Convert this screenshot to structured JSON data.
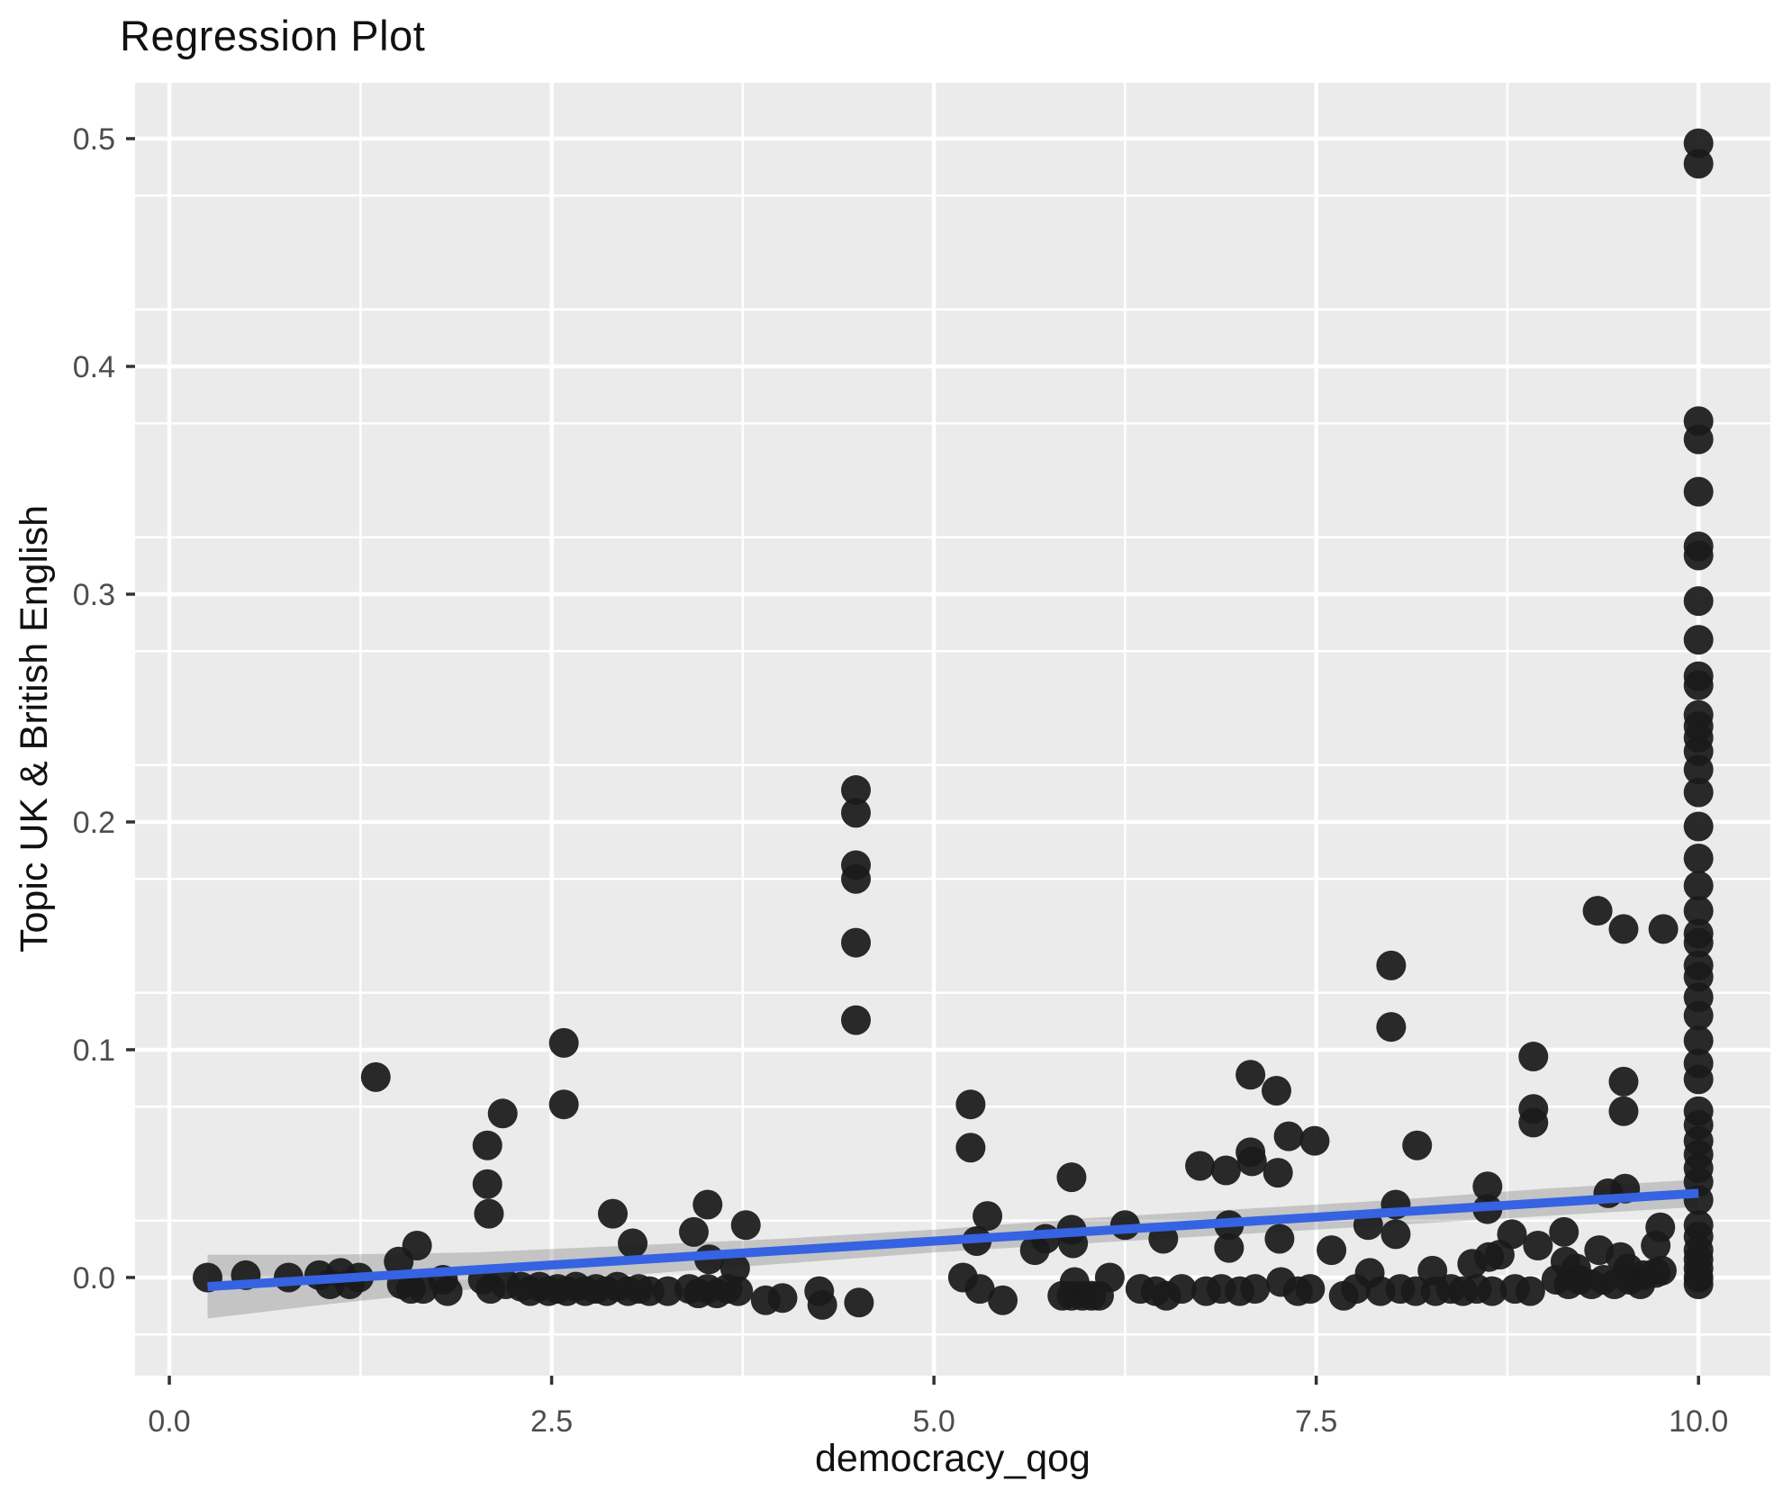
{
  "chart_data": {
    "type": "scatter",
    "title": "Regression Plot",
    "xlabel": "democracy_qog",
    "ylabel": "Topic UK & British English",
    "xlim": [
      -0.224,
      10.47
    ],
    "ylim": [
      -0.0431,
      0.5253
    ],
    "grid": "on",
    "legend": "none",
    "x_axis": {
      "major_ticks": [
        0.0,
        2.5,
        5.0,
        7.5,
        10.0
      ],
      "major_tick_labels": [
        "0.0",
        "2.5",
        "5.0",
        "7.5",
        "10.0"
      ],
      "minor_ticks": [
        1.25,
        3.75,
        6.25,
        8.75
      ]
    },
    "y_axis": {
      "major_ticks": [
        0.0,
        0.1,
        0.2,
        0.3,
        0.4,
        0.5
      ],
      "major_tick_labels": [
        "0.0",
        "0.1",
        "0.2",
        "0.3",
        "0.4",
        "0.5"
      ],
      "minor_ticks": [
        -0.025,
        0.025,
        0.075,
        0.125,
        0.175,
        0.225,
        0.275,
        0.325,
        0.375,
        0.425,
        0.475,
        0.525
      ]
    },
    "regression_line": {
      "x": [
        0.25,
        10.0
      ],
      "y": [
        -0.004,
        0.037
      ]
    },
    "confidence_band": {
      "x": [
        0.25,
        1,
        2,
        3,
        4,
        5,
        6,
        7,
        8,
        9,
        10
      ],
      "upper": [
        0.01,
        0.01,
        0.011,
        0.014,
        0.017,
        0.021,
        0.026,
        0.03,
        0.034,
        0.039,
        0.043
      ],
      "lower": [
        -0.018,
        -0.012,
        -0.005,
        0.001,
        0.006,
        0.011,
        0.015,
        0.019,
        0.023,
        0.027,
        0.031
      ]
    },
    "points": [
      [
        0.25,
        0
      ],
      [
        0.5,
        0.001
      ],
      [
        0.78,
        0
      ],
      [
        0.98,
        0.001
      ],
      [
        1.05,
        -0.003
      ],
      [
        1.12,
        0.002
      ],
      [
        1.18,
        -0.003
      ],
      [
        1.24,
        0
      ],
      [
        1.35,
        0.088
      ],
      [
        1.5,
        0.007
      ],
      [
        1.52,
        -0.003
      ],
      [
        1.58,
        -0.005
      ],
      [
        1.62,
        0.014
      ],
      [
        1.66,
        -0.005
      ],
      [
        1.79,
        -0.001
      ],
      [
        1.82,
        -0.006
      ],
      [
        2.05,
        -0.001
      ],
      [
        2.08,
        0.058
      ],
      [
        2.08,
        0.041
      ],
      [
        2.09,
        0.028
      ],
      [
        2.1,
        -0.005
      ],
      [
        2.18,
        0.072
      ],
      [
        2.2,
        -0.003
      ],
      [
        2.3,
        -0.004
      ],
      [
        2.36,
        -0.006
      ],
      [
        2.42,
        -0.004
      ],
      [
        2.48,
        -0.006
      ],
      [
        2.54,
        -0.005
      ],
      [
        2.6,
        -0.006
      ],
      [
        2.66,
        -0.004
      ],
      [
        2.72,
        -0.006
      ],
      [
        2.79,
        -0.005
      ],
      [
        2.86,
        -0.006
      ],
      [
        2.93,
        -0.004
      ],
      [
        3.0,
        -0.006
      ],
      [
        3.07,
        -0.005
      ],
      [
        3.14,
        -0.006
      ],
      [
        2.58,
        0.103
      ],
      [
        2.58,
        0.076
      ],
      [
        2.9,
        0.028
      ],
      [
        3.03,
        0.015
      ],
      [
        3.26,
        -0.006
      ],
      [
        3.4,
        -0.005
      ],
      [
        3.46,
        -0.007
      ],
      [
        3.52,
        -0.005
      ],
      [
        3.58,
        -0.007
      ],
      [
        3.65,
        -0.005
      ],
      [
        3.72,
        -0.006
      ],
      [
        3.43,
        0.02
      ],
      [
        3.52,
        0.032
      ],
      [
        3.53,
        0.008
      ],
      [
        3.7,
        0.004
      ],
      [
        3.77,
        0.023
      ],
      [
        3.9,
        -0.01
      ],
      [
        4.01,
        -0.009
      ],
      [
        4.25,
        -0.006
      ],
      [
        4.27,
        -0.012
      ],
      [
        4.51,
        -0.011
      ],
      [
        4.49,
        0.214
      ],
      [
        4.49,
        0.204
      ],
      [
        4.49,
        0.181
      ],
      [
        4.49,
        0.175
      ],
      [
        4.49,
        0.147
      ],
      [
        4.49,
        0.113
      ],
      [
        5.19,
        0
      ],
      [
        5.24,
        0.076
      ],
      [
        5.24,
        0.057
      ],
      [
        5.28,
        0.016
      ],
      [
        5.3,
        -0.005
      ],
      [
        5.35,
        0.027
      ],
      [
        5.45,
        -0.01
      ],
      [
        5.66,
        0.012
      ],
      [
        5.73,
        0.017
      ],
      [
        5.84,
        -0.008
      ],
      [
        5.9,
        -0.008
      ],
      [
        5.97,
        -0.008
      ],
      [
        6.03,
        -0.008
      ],
      [
        6.08,
        -0.008
      ],
      [
        5.9,
        0.044
      ],
      [
        5.9,
        0.021
      ],
      [
        5.91,
        0.015
      ],
      [
        5.92,
        -0.002
      ],
      [
        6.15,
        0
      ],
      [
        6.25,
        0.023
      ],
      [
        6.35,
        -0.005
      ],
      [
        6.45,
        -0.006
      ],
      [
        6.5,
        0.017
      ],
      [
        6.52,
        -0.008
      ],
      [
        6.62,
        -0.005
      ],
      [
        6.74,
        0.049
      ],
      [
        6.78,
        -0.006
      ],
      [
        6.88,
        -0.005
      ],
      [
        6.91,
        0.047
      ],
      [
        6.93,
        0.023
      ],
      [
        6.93,
        0.013
      ],
      [
        7.0,
        -0.006
      ],
      [
        7.07,
        0.089
      ],
      [
        7.07,
        0.055
      ],
      [
        7.08,
        0.051
      ],
      [
        7.1,
        -0.005
      ],
      [
        7.24,
        0.082
      ],
      [
        7.25,
        0.046
      ],
      [
        7.26,
        0.017
      ],
      [
        7.27,
        -0.002
      ],
      [
        7.32,
        0.062
      ],
      [
        7.38,
        -0.006
      ],
      [
        7.46,
        -0.005
      ],
      [
        7.49,
        0.06
      ],
      [
        7.6,
        0.012
      ],
      [
        7.68,
        -0.008
      ],
      [
        7.76,
        -0.005
      ],
      [
        7.84,
        0.023
      ],
      [
        7.85,
        0.002
      ],
      [
        7.92,
        -0.006
      ],
      [
        7.99,
        0.137
      ],
      [
        7.99,
        0.11
      ],
      [
        8.02,
        0.032
      ],
      [
        8.02,
        0.019
      ],
      [
        8.05,
        -0.005
      ],
      [
        8.16,
        0.058
      ],
      [
        8.15,
        -0.006
      ],
      [
        8.26,
        0.003
      ],
      [
        8.28,
        -0.006
      ],
      [
        8.38,
        -0.005
      ],
      [
        8.46,
        -0.006
      ],
      [
        8.52,
        0.006
      ],
      [
        8.55,
        -0.005
      ],
      [
        8.62,
        0.04
      ],
      [
        8.62,
        0.03
      ],
      [
        8.63,
        0.009
      ],
      [
        8.65,
        -0.006
      ],
      [
        8.7,
        0.01
      ],
      [
        8.78,
        0.019
      ],
      [
        8.8,
        -0.005
      ],
      [
        8.92,
        0.097
      ],
      [
        8.92,
        0.074
      ],
      [
        8.92,
        0.068
      ],
      [
        8.9,
        -0.006
      ],
      [
        8.95,
        0.014
      ],
      [
        9.07,
        -0.001
      ],
      [
        9.12,
        0.02
      ],
      [
        9.13,
        0.007
      ],
      [
        9.15,
        -0.003
      ],
      [
        9.2,
        0.004
      ],
      [
        9.22,
        -0.001
      ],
      [
        9.3,
        -0.003
      ],
      [
        9.34,
        0.161
      ],
      [
        9.35,
        0.012
      ],
      [
        9.38,
        -0.001
      ],
      [
        9.41,
        0.037
      ],
      [
        9.45,
        -0.003
      ],
      [
        9.49,
        0.009
      ],
      [
        9.51,
        0.153
      ],
      [
        9.51,
        0.086
      ],
      [
        9.51,
        0.073
      ],
      [
        9.52,
        0.039
      ],
      [
        9.54,
        0.004
      ],
      [
        9.55,
        -0.001
      ],
      [
        9.62,
        -0.003
      ],
      [
        9.64,
        0.001
      ],
      [
        9.72,
        0.014
      ],
      [
        9.72,
        0.002
      ],
      [
        9.75,
        0.022
      ],
      [
        9.76,
        0.003
      ],
      [
        9.77,
        0.153
      ],
      [
        10,
        0.498
      ],
      [
        10,
        0.489
      ],
      [
        10,
        0.376
      ],
      [
        10,
        0.368
      ],
      [
        10,
        0.345
      ],
      [
        10,
        0.321
      ],
      [
        10,
        0.317
      ],
      [
        10,
        0.297
      ],
      [
        10,
        0.28
      ],
      [
        10,
        0.264
      ],
      [
        10,
        0.26
      ],
      [
        10,
        0.247
      ],
      [
        10,
        0.242
      ],
      [
        10,
        0.237
      ],
      [
        10,
        0.231
      ],
      [
        10,
        0.223
      ],
      [
        10,
        0.213
      ],
      [
        10,
        0.198
      ],
      [
        10,
        0.184
      ],
      [
        10,
        0.172
      ],
      [
        10,
        0.161
      ],
      [
        10,
        0.151
      ],
      [
        10,
        0.147
      ],
      [
        10,
        0.137
      ],
      [
        10,
        0.132
      ],
      [
        10,
        0.123
      ],
      [
        10,
        0.115
      ],
      [
        10,
        0.104
      ],
      [
        10,
        0.094
      ],
      [
        10,
        0.087
      ],
      [
        10,
        0.073
      ],
      [
        10,
        0.067
      ],
      [
        10,
        0.06
      ],
      [
        10,
        0.054
      ],
      [
        10,
        0.048
      ],
      [
        10,
        0.042
      ],
      [
        10,
        0.034
      ],
      [
        10,
        0.023
      ],
      [
        10,
        0.018
      ],
      [
        10,
        0.012
      ],
      [
        10,
        0.008
      ],
      [
        10,
        0.004
      ],
      [
        10,
        0
      ],
      [
        10,
        -0.003
      ]
    ],
    "colors": {
      "panel_background": "#EBEBEB",
      "gridline": "#FFFFFF",
      "point": "#1A1A1A",
      "regression_line": "#3563E2",
      "confidence_band": "rgba(96,96,96,0.28)",
      "tick_label": "#4D4D4D",
      "tick_mark": "#333333",
      "text": "#111111"
    }
  }
}
